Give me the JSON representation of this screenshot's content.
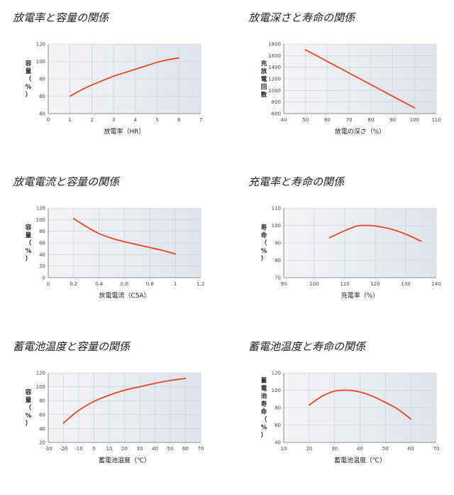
{
  "colors": {
    "curve": "#e24a2b",
    "plot_bg_left": "#f2f3f5",
    "plot_bg_right": "#dfe4eb"
  },
  "chart_data": [
    {
      "type": "line",
      "title": "放電率と容量の関係",
      "xlabel": "放電率（HR）",
      "ylabel": "容量（%）",
      "xlim": [
        0,
        7
      ],
      "ylim": [
        40,
        120
      ],
      "xticks": [
        0,
        1,
        2,
        3,
        4,
        5,
        6,
        7
      ],
      "yticks": [
        40,
        60,
        80,
        100,
        120
      ],
      "x": [
        1,
        1.5,
        2,
        2.5,
        3,
        3.5,
        4,
        4.5,
        5,
        5.5,
        6
      ],
      "y": [
        60,
        67,
        73,
        78,
        83,
        87,
        91,
        95,
        99,
        102,
        104
      ]
    },
    {
      "type": "line",
      "title": "放電深さと寿命の関係",
      "xlabel": "放電の深さ（%）",
      "ylabel": "充放電回数",
      "xlim": [
        40,
        110
      ],
      "ylim": [
        600,
        1800
      ],
      "xticks": [
        40,
        50,
        60,
        70,
        80,
        90,
        100,
        110
      ],
      "yticks": [
        600,
        800,
        1000,
        1200,
        1400,
        1600,
        1800
      ],
      "x": [
        50,
        100
      ],
      "y": [
        1700,
        700
      ]
    },
    {
      "type": "line",
      "title": "放電電流と容量の関係",
      "xlabel": "放電電流（C5A）",
      "ylabel": "容量（%）",
      "xlim": [
        0,
        1.2
      ],
      "ylim": [
        0,
        120
      ],
      "xticks": [
        "0",
        "0.2",
        "0.4",
        "0.6",
        "0.8",
        "1",
        "1.2"
      ],
      "yticks": [
        0,
        20,
        40,
        60,
        80,
        100,
        120
      ],
      "x": [
        0.2,
        0.3,
        0.4,
        0.5,
        0.6,
        0.7,
        0.8,
        0.9,
        1.0
      ],
      "y": [
        102,
        88,
        76,
        68,
        62,
        57,
        52,
        47,
        41
      ]
    },
    {
      "type": "line",
      "title": "充電率と寿命の関係",
      "xlabel": "充電率（%）",
      "ylabel": "寿命（%）",
      "xlim": [
        90,
        140
      ],
      "ylim": [
        70,
        110
      ],
      "xticks": [
        90,
        100,
        110,
        120,
        130,
        140
      ],
      "yticks": [
        70,
        80,
        90,
        100,
        110
      ],
      "x": [
        105,
        110,
        114,
        117,
        120,
        125,
        130,
        135
      ],
      "y": [
        93,
        97,
        99.7,
        100,
        99.7,
        98,
        95,
        91
      ]
    },
    {
      "type": "line",
      "title": "蓄電池温度と容量の関係",
      "xlabel": "蓄電池温度（℃）",
      "ylabel": "容量（%）",
      "xlim": [
        -30,
        70
      ],
      "ylim": [
        20,
        120
      ],
      "xticks": [
        -30,
        -20,
        -10,
        0,
        10,
        20,
        30,
        40,
        50,
        60,
        70
      ],
      "yticks": [
        20,
        40,
        60,
        80,
        100,
        120
      ],
      "x": [
        -20,
        -10,
        0,
        10,
        20,
        30,
        40,
        50,
        60
      ],
      "y": [
        48,
        66,
        79,
        88,
        95,
        100,
        105,
        109,
        112
      ]
    },
    {
      "type": "line",
      "title": "蓄電池温度と寿命の関係",
      "xlabel": "蓄電池温度（℃）",
      "ylabel": "蓄電池寿命（%）",
      "xlim": [
        10,
        70
      ],
      "ylim": [
        40,
        120
      ],
      "xticks": [
        10,
        20,
        30,
        40,
        50,
        60,
        70
      ],
      "yticks": [
        40,
        60,
        80,
        100,
        120
      ],
      "x": [
        20,
        25,
        30,
        35,
        40,
        45,
        50,
        55,
        60
      ],
      "y": [
        83,
        93,
        99,
        100,
        98,
        93,
        86,
        78,
        67
      ]
    }
  ]
}
